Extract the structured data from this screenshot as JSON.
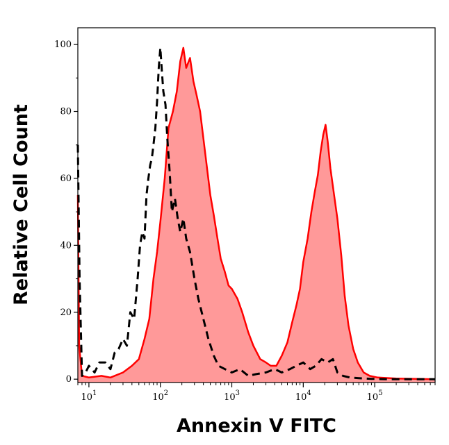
{
  "chart_data": {
    "type": "area",
    "title": "",
    "xlabel": "Annexin V FITC",
    "ylabel": "Relative Cell Count",
    "x_scale": "log",
    "xlim": [
      7,
      700000
    ],
    "ylim": [
      -1,
      105
    ],
    "grid": false,
    "legend": "none",
    "y_ticks": [
      0,
      20,
      40,
      60,
      80,
      100
    ],
    "x_ticks": [
      {
        "base": "10",
        "exp": "1",
        "value": 10
      },
      {
        "base": "10",
        "exp": "2",
        "value": 100
      },
      {
        "base": "10",
        "exp": "3",
        "value": 1000
      },
      {
        "base": "10",
        "exp": "4",
        "value": 10000
      },
      {
        "base": "10",
        "exp": "5",
        "value": 100000
      }
    ],
    "series": [
      {
        "style": "dashed",
        "color": "#000000",
        "points": [
          [
            7,
            70
          ],
          [
            7.4,
            30
          ],
          [
            8,
            1
          ],
          [
            9,
            2
          ],
          [
            10,
            4
          ],
          [
            12,
            2
          ],
          [
            14,
            5
          ],
          [
            17,
            5
          ],
          [
            20,
            3
          ],
          [
            23,
            8
          ],
          [
            26,
            9
          ],
          [
            30,
            12
          ],
          [
            34,
            10
          ],
          [
            38,
            20
          ],
          [
            43,
            18
          ],
          [
            48,
            30
          ],
          [
            52,
            40
          ],
          [
            56,
            44
          ],
          [
            60,
            42
          ],
          [
            64,
            55
          ],
          [
            68,
            60
          ],
          [
            72,
            64
          ],
          [
            76,
            66
          ],
          [
            80,
            70
          ],
          [
            85,
            75
          ],
          [
            90,
            83
          ],
          [
            95,
            93
          ],
          [
            100,
            99
          ],
          [
            105,
            92
          ],
          [
            110,
            86
          ],
          [
            118,
            82
          ],
          [
            125,
            72
          ],
          [
            135,
            62
          ],
          [
            145,
            50
          ],
          [
            160,
            54
          ],
          [
            175,
            48
          ],
          [
            190,
            44
          ],
          [
            210,
            48
          ],
          [
            230,
            42
          ],
          [
            260,
            38
          ],
          [
            300,
            30
          ],
          [
            340,
            24
          ],
          [
            400,
            18
          ],
          [
            470,
            12
          ],
          [
            560,
            7
          ],
          [
            650,
            4
          ],
          [
            800,
            3
          ],
          [
            1000,
            2
          ],
          [
            1300,
            3
          ],
          [
            1700,
            1
          ],
          [
            2200,
            1.5
          ],
          [
            3000,
            2
          ],
          [
            4000,
            3
          ],
          [
            5000,
            2
          ],
          [
            6500,
            3
          ],
          [
            8000,
            4
          ],
          [
            10000,
            5
          ],
          [
            12500,
            3
          ],
          [
            15000,
            4
          ],
          [
            18000,
            6
          ],
          [
            22000,
            5
          ],
          [
            26000,
            6
          ],
          [
            30000,
            2
          ],
          [
            36000,
            1
          ],
          [
            45000,
            0.5
          ],
          [
            60000,
            0.3
          ],
          [
            90000,
            0.1
          ],
          [
            150000,
            0
          ],
          [
            700000,
            0
          ]
        ]
      },
      {
        "style": "filled",
        "color": "#ff0000",
        "fill": "#ff9999",
        "points": [
          [
            7,
            55
          ],
          [
            7.3,
            10
          ],
          [
            8,
            1
          ],
          [
            10,
            0.5
          ],
          [
            15,
            1
          ],
          [
            20,
            0.5
          ],
          [
            30,
            2
          ],
          [
            40,
            4
          ],
          [
            50,
            6
          ],
          [
            60,
            12
          ],
          [
            70,
            18
          ],
          [
            80,
            30
          ],
          [
            90,
            38
          ],
          [
            100,
            47
          ],
          [
            115,
            60
          ],
          [
            130,
            75
          ],
          [
            150,
            80
          ],
          [
            170,
            86
          ],
          [
            190,
            95
          ],
          [
            210,
            99
          ],
          [
            230,
            93
          ],
          [
            260,
            96
          ],
          [
            290,
            89
          ],
          [
            320,
            85
          ],
          [
            360,
            80
          ],
          [
            400,
            72
          ],
          [
            450,
            63
          ],
          [
            500,
            55
          ],
          [
            560,
            49
          ],
          [
            630,
            42
          ],
          [
            700,
            36
          ],
          [
            800,
            32
          ],
          [
            900,
            28
          ],
          [
            1000,
            27
          ],
          [
            1200,
            24
          ],
          [
            1400,
            20
          ],
          [
            1700,
            14
          ],
          [
            2000,
            10
          ],
          [
            2500,
            6
          ],
          [
            3000,
            5
          ],
          [
            3500,
            4
          ],
          [
            4200,
            4
          ],
          [
            5000,
            7
          ],
          [
            6000,
            11
          ],
          [
            7000,
            17
          ],
          [
            8000,
            22
          ],
          [
            9000,
            27
          ],
          [
            10000,
            35
          ],
          [
            11500,
            42
          ],
          [
            13000,
            50
          ],
          [
            14500,
            56
          ],
          [
            16000,
            61
          ],
          [
            17500,
            68
          ],
          [
            19000,
            73
          ],
          [
            20500,
            76
          ],
          [
            22000,
            71
          ],
          [
            24000,
            63
          ],
          [
            27000,
            55
          ],
          [
            30000,
            48
          ],
          [
            34000,
            37
          ],
          [
            38000,
            25
          ],
          [
            43000,
            16
          ],
          [
            50000,
            9
          ],
          [
            58000,
            5
          ],
          [
            70000,
            2
          ],
          [
            85000,
            1
          ],
          [
            110000,
            0.5
          ],
          [
            200000,
            0.2
          ],
          [
            700000,
            0
          ]
        ]
      }
    ]
  }
}
